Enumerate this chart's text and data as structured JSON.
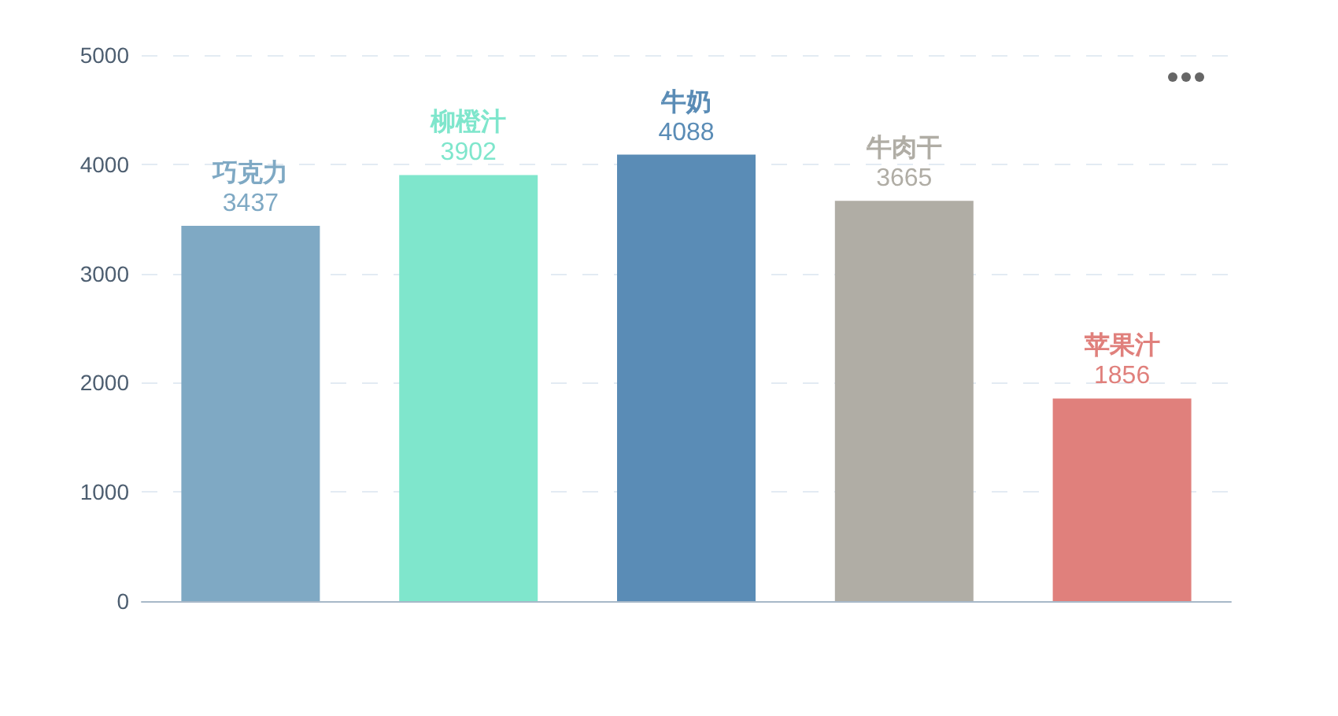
{
  "chart_data": {
    "type": "bar",
    "categories": [
      "巧克力",
      "柳橙汁",
      "牛奶",
      "牛肉干",
      "苹果汁"
    ],
    "values": [
      3437,
      3902,
      4088,
      3665,
      1856
    ],
    "colors": [
      "#7fa9c4",
      "#7fe6cc",
      "#5a8cb6",
      "#b0ada5",
      "#e0807c"
    ],
    "ylim": [
      0,
      5000
    ],
    "yticks": [
      0,
      1000,
      2000,
      3000,
      4000,
      5000
    ],
    "grid": "y",
    "tick_labels": "y",
    "data_labels": true
  }
}
